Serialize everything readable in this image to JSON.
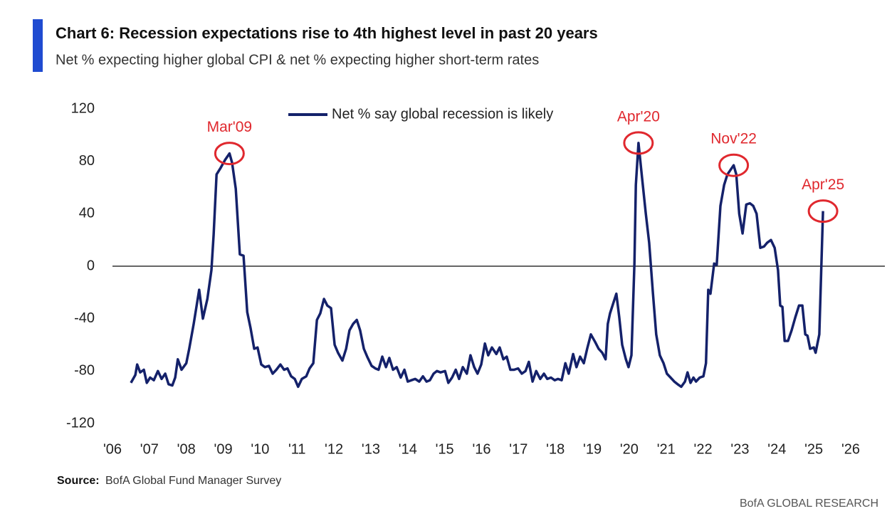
{
  "chart_data": {
    "type": "line",
    "title": "Chart 6: Recession expectations rise to 4th highest level in past 20 years",
    "subtitle": "Net % expecting higher global CPI & net % expecting higher short-term rates",
    "source_label": "Source:",
    "source_text": "BofA Global Fund Manager Survey",
    "footer": "BofA GLOBAL RESEARCH",
    "legend": "top",
    "grid": false,
    "xlim": [
      2006,
      2026
    ],
    "xticks": [
      {
        "value": 2006,
        "label": "'06"
      },
      {
        "value": 2007,
        "label": "'07"
      },
      {
        "value": 2008,
        "label": "'08"
      },
      {
        "value": 2009,
        "label": "'09"
      },
      {
        "value": 2010,
        "label": "'10"
      },
      {
        "value": 2011,
        "label": "'11"
      },
      {
        "value": 2012,
        "label": "'12"
      },
      {
        "value": 2013,
        "label": "'13"
      },
      {
        "value": 2014,
        "label": "'14"
      },
      {
        "value": 2015,
        "label": "'15"
      },
      {
        "value": 2016,
        "label": "'16"
      },
      {
        "value": 2017,
        "label": "'17"
      },
      {
        "value": 2018,
        "label": "'18"
      },
      {
        "value": 2019,
        "label": "'19"
      },
      {
        "value": 2020,
        "label": "'20"
      },
      {
        "value": 2021,
        "label": "'21"
      },
      {
        "value": 2022,
        "label": "'22"
      },
      {
        "value": 2023,
        "label": "'23"
      },
      {
        "value": 2024,
        "label": "'24"
      },
      {
        "value": 2025,
        "label": "'25"
      },
      {
        "value": 2026,
        "label": "'26"
      }
    ],
    "ylim": [
      -120,
      120
    ],
    "yticks": [
      -120,
      -80,
      -40,
      0,
      40,
      80,
      120
    ],
    "x": [
      2006.5,
      2006.62,
      2006.67,
      2006.75,
      2006.85,
      2006.93,
      2007.02,
      2007.12,
      2007.23,
      2007.33,
      2007.43,
      2007.52,
      2007.62,
      2007.7,
      2007.77,
      2007.87,
      2008.0,
      2008.08,
      2008.2,
      2008.35,
      2008.45,
      2008.57,
      2008.68,
      2008.74,
      2008.82,
      2008.93,
      2009.05,
      2009.17,
      2009.24,
      2009.34,
      2009.45,
      2009.55,
      2009.65,
      2009.74,
      2009.84,
      2009.93,
      2010.03,
      2010.13,
      2010.24,
      2010.34,
      2010.44,
      2010.55,
      2010.65,
      2010.74,
      2010.84,
      2010.94,
      2011.03,
      2011.13,
      2011.25,
      2011.34,
      2011.44,
      2011.54,
      2011.63,
      2011.73,
      2011.82,
      2011.92,
      2012.02,
      2012.11,
      2012.23,
      2012.33,
      2012.42,
      2012.52,
      2012.62,
      2012.71,
      2012.81,
      2012.9,
      2013.02,
      2013.12,
      2013.21,
      2013.31,
      2013.41,
      2013.5,
      2013.6,
      2013.7,
      2013.81,
      2013.91,
      2014.0,
      2014.1,
      2014.2,
      2014.31,
      2014.41,
      2014.51,
      2014.6,
      2014.7,
      2014.79,
      2014.89,
      2015.01,
      2015.1,
      2015.2,
      2015.3,
      2015.39,
      2015.49,
      2015.6,
      2015.7,
      2015.8,
      2015.89,
      2015.99,
      2016.09,
      2016.18,
      2016.28,
      2016.4,
      2016.49,
      2016.59,
      2016.68,
      2016.78,
      2016.88,
      2016.99,
      2017.09,
      2017.19,
      2017.28,
      2017.38,
      2017.48,
      2017.59,
      2017.69,
      2017.78,
      2017.88,
      2017.98,
      2018.07,
      2018.17,
      2018.27,
      2018.36,
      2018.48,
      2018.57,
      2018.67,
      2018.77,
      2018.86,
      2018.96,
      2019.08,
      2019.17,
      2019.27,
      2019.36,
      2019.42,
      2019.48,
      2019.57,
      2019.65,
      2019.73,
      2019.81,
      2019.91,
      2019.98,
      2020.06,
      2020.14,
      2020.18,
      2020.25,
      2020.35,
      2020.45,
      2020.54,
      2020.64,
      2020.73,
      2020.83,
      2020.93,
      2021.02,
      2021.12,
      2021.22,
      2021.31,
      2021.41,
      2021.51,
      2021.58,
      2021.66,
      2021.74,
      2021.81,
      2021.91,
      2022.01,
      2022.08,
      2022.14,
      2022.2,
      2022.3,
      2022.37,
      2022.47,
      2022.57,
      2022.66,
      2022.83,
      2022.9,
      2022.98,
      2023.07,
      2023.17,
      2023.27,
      2023.36,
      2023.45,
      2023.55,
      2023.65,
      2023.74,
      2023.84,
      2023.94,
      2024.03,
      2024.09,
      2024.15,
      2024.21,
      2024.3,
      2024.4,
      2024.5,
      2024.6,
      2024.69,
      2024.77,
      2024.83,
      2024.9,
      2025.0,
      2025.05,
      2025.15,
      2025.25
    ],
    "series": [
      {
        "name": "Net % say global recession is likely",
        "color": "#14216a",
        "values": [
          -89,
          -83,
          -75,
          -81,
          -79,
          -89,
          -85,
          -87,
          -80,
          -86,
          -82,
          -90,
          -91,
          -85,
          -71,
          -79,
          -74,
          -63,
          -44,
          -18,
          -40,
          -25,
          -3,
          24,
          70,
          75,
          81,
          86,
          79,
          59,
          9,
          8,
          -35,
          -47,
          -63,
          -62,
          -75,
          -77,
          -76,
          -82,
          -79,
          -75,
          -79,
          -78,
          -84,
          -86,
          -92,
          -86,
          -84,
          -78,
          -74,
          -41,
          -36,
          -25,
          -30,
          -32,
          -60,
          -66,
          -72,
          -63,
          -49,
          -44,
          -41,
          -49,
          -63,
          -69,
          -76,
          -78,
          -79,
          -69,
          -77,
          -70,
          -79,
          -77,
          -85,
          -79,
          -88,
          -87,
          -86,
          -88,
          -84,
          -88,
          -87,
          -82,
          -80,
          -81,
          -80,
          -89,
          -85,
          -79,
          -86,
          -77,
          -82,
          -68,
          -77,
          -82,
          -75,
          -59,
          -68,
          -62,
          -67,
          -62,
          -71,
          -69,
          -79,
          -79,
          -78,
          -82,
          -80,
          -73,
          -88,
          -80,
          -86,
          -82,
          -86,
          -85,
          -87,
          -86,
          -87,
          -74,
          -82,
          -67,
          -77,
          -69,
          -74,
          -63,
          -52,
          -58,
          -63,
          -66,
          -71,
          -44,
          -36,
          -28,
          -21,
          -39,
          -60,
          -71,
          -77,
          -68,
          2,
          62,
          94,
          67,
          40,
          18,
          -20,
          -52,
          -68,
          -74,
          -82,
          -85,
          -88,
          -90,
          -92,
          -88,
          -81,
          -89,
          -85,
          -88,
          -85,
          -84,
          -74,
          -18,
          -21,
          2,
          1,
          46,
          62,
          70,
          77,
          70,
          40,
          25,
          47,
          48,
          46,
          40,
          14,
          15,
          18,
          20,
          14,
          -3,
          -30,
          -31,
          -57,
          -57,
          -49,
          -39,
          -30,
          -30,
          -52,
          -53,
          -63,
          -62,
          -66,
          -52,
          42
        ]
      }
    ],
    "annotations": [
      {
        "label": "Mar'09",
        "x": 2009.17,
        "y": 86,
        "color": "#e0282e"
      },
      {
        "label": "Apr'20",
        "x": 2020.25,
        "y": 94,
        "color": "#e0282e"
      },
      {
        "label": "Nov'22",
        "x": 2022.83,
        "y": 77,
        "color": "#e0282e"
      },
      {
        "label": "Apr'25",
        "x": 2025.25,
        "y": 42,
        "color": "#e0282e"
      }
    ]
  }
}
